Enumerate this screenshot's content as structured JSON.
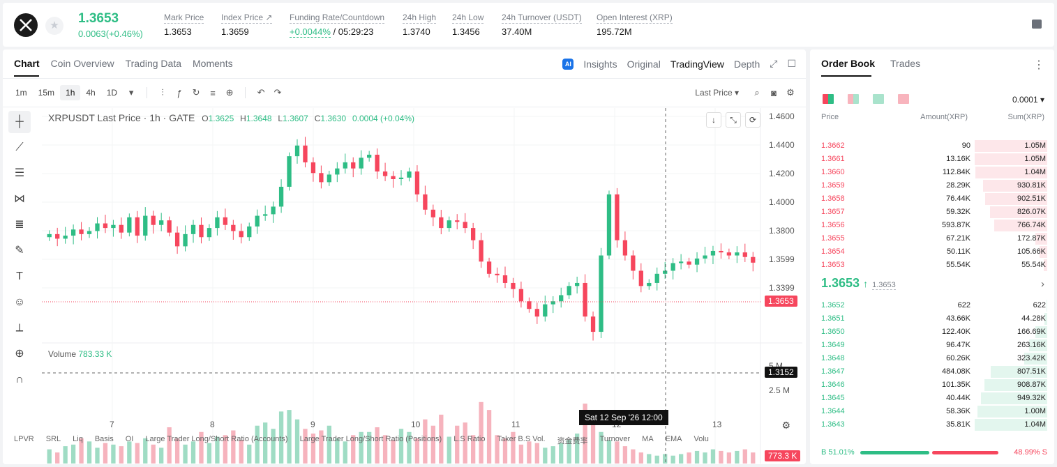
{
  "colors": {
    "up": "#2ebd85",
    "down": "#f6465d"
  },
  "ticker": {
    "price": "1.3653",
    "change": "0.0063(+0.46%)",
    "stats": [
      {
        "key": "Mark Price",
        "value": "1.3653"
      },
      {
        "key": "Index Price ↗",
        "value": "1.3659"
      },
      {
        "key": "Funding Rate/Countdown",
        "value_green": "+0.0044%",
        "value": " / 05:29:23"
      },
      {
        "key": "24h High",
        "value": "1.3740"
      },
      {
        "key": "24h Low",
        "value": "1.3456"
      },
      {
        "key": "24h Turnover (USDT)",
        "value": "37.40M"
      },
      {
        "key": "Open Interest (XRP)",
        "value": "195.72M"
      }
    ]
  },
  "chart_tabs": [
    "Chart",
    "Coin Overview",
    "Trading Data",
    "Moments"
  ],
  "views": {
    "insights": "Insights",
    "original": "Original",
    "tradingview": "TradingView",
    "depth": "Depth"
  },
  "intervals": [
    "1m",
    "15m",
    "1h",
    "4h",
    "1D"
  ],
  "last_price_select": "Last Price ▾",
  "legend": {
    "title": "XRPUSDT Last Price · 1h · GATE",
    "o": "1.3625",
    "h": "1.3648",
    "l": "1.3607",
    "c": "1.3630",
    "chg": "0.0004 (+0.04%)"
  },
  "volume_label": "Volume",
  "volume_value": "783.33 K",
  "price_tag": "1.3653",
  "cross_tag": "1.3152",
  "vol_tag": "773.3 K",
  "crosshair_time": "Sat 12 Sep '26    12:00",
  "indicators": [
    "LPVR",
    "SRL",
    "Liq",
    "Basis",
    "OI",
    "Large Trader Long/Short Ratio (Accounts)",
    "Large Trader Long/Short Ratio (Positions)",
    "L.S Ratio",
    "Taker B.S Vol.",
    "资金费率",
    "Turnover",
    "MA",
    "EMA",
    "Volu"
  ],
  "chart_data": {
    "type": "candlestick",
    "title": "XRPUSDT Last Price · 1h · GATE",
    "y_ticks": [
      "1.4600",
      "1.4400",
      "1.4200",
      "1.4000",
      "1.3800",
      "1.3599",
      "1.3399"
    ],
    "ylim": [
      1.315,
      1.462
    ],
    "x_ticks": [
      "7",
      "8",
      "9",
      "10",
      "11",
      "12",
      "13"
    ],
    "volume_ticks": [
      "5 M",
      "2.5 M"
    ],
    "closes": [
      1.384,
      1.381,
      1.383,
      1.387,
      1.384,
      1.386,
      1.391,
      1.388,
      1.39,
      1.385,
      1.395,
      1.383,
      1.396,
      1.39,
      1.393,
      1.385,
      1.376,
      1.384,
      1.39,
      1.382,
      1.388,
      1.395,
      1.39,
      1.386,
      1.382,
      1.389,
      1.396,
      1.397,
      1.402,
      1.415,
      1.435,
      1.442,
      1.431,
      1.424,
      1.418,
      1.423,
      1.427,
      1.431,
      1.427,
      1.434,
      1.436,
      1.425,
      1.422,
      1.42,
      1.421,
      1.425,
      1.41,
      1.4,
      1.395,
      1.388,
      1.393,
      1.392,
      1.388,
      1.38,
      1.366,
      1.358,
      1.357,
      1.352,
      1.348,
      1.34,
      1.335,
      1.33,
      1.338,
      1.34,
      1.344,
      1.35,
      1.352,
      1.33,
      1.32,
      1.37,
      1.41,
      1.38,
      1.37,
      1.36,
      1.35,
      1.352,
      1.358,
      1.36,
      1.365,
      1.366,
      1.364,
      1.368,
      1.37,
      1.373,
      1.372,
      1.37,
      1.372,
      1.369,
      1.3653
    ],
    "volumes": [
      0.9,
      0.7,
      1.1,
      1.2,
      1.6,
      1.4,
      1.0,
      1.3,
      1.2,
      1.1,
      1.4,
      1.3,
      1.6,
      1.2,
      1.0,
      2.3,
      1.6,
      1.2,
      1.4,
      2.0,
      1.3,
      1.7,
      1.8,
      2.1,
      1.5,
      1.2,
      2.4,
      2.6,
      2.2,
      3.3,
      3.4,
      2.8,
      2.2,
      1.9,
      2.1,
      2.4,
      1.6,
      1.4,
      1.8,
      2.0,
      2.0,
      2.3,
      1.8,
      1.5,
      2.2,
      2.0,
      1.6,
      2.8,
      2.4,
      3.1,
      1.7,
      2.4,
      2.6,
      1.8,
      3.9,
      3.4,
      1.8,
      1.6,
      2.0,
      1.2,
      1.4,
      1.3,
      1.0,
      1.1,
      1.3,
      1.5,
      1.9,
      3.8,
      3.3,
      2.0,
      1.5,
      1.4,
      1.1,
      0.9,
      0.7,
      0.6,
      0.5,
      0.6,
      0.5,
      0.6,
      0.7,
      0.8,
      0.7,
      0.9,
      0.8,
      0.7,
      0.8,
      0.9,
      0.7
    ],
    "vol_ylim": [
      0,
      6.5
    ]
  },
  "orderbook": {
    "tabs": [
      "Order Book",
      "Trades"
    ],
    "precision": "0.0001 ▾",
    "headers": {
      "price": "Price",
      "amount": "Amount(XRP)",
      "sum": "Sum(XRP)"
    },
    "asks": [
      {
        "price": "1.3662",
        "amount": "90",
        "sum": "1.05M",
        "depth": 0.99
      },
      {
        "price": "1.3661",
        "amount": "13.16K",
        "sum": "1.05M",
        "depth": 0.99
      },
      {
        "price": "1.3660",
        "amount": "112.84K",
        "sum": "1.04M",
        "depth": 0.98
      },
      {
        "price": "1.3659",
        "amount": "28.29K",
        "sum": "930.81K",
        "depth": 0.88
      },
      {
        "price": "1.3658",
        "amount": "76.44K",
        "sum": "902.51K",
        "depth": 0.85
      },
      {
        "price": "1.3657",
        "amount": "59.32K",
        "sum": "826.07K",
        "depth": 0.78
      },
      {
        "price": "1.3656",
        "amount": "593.87K",
        "sum": "766.74K",
        "depth": 0.72
      },
      {
        "price": "1.3655",
        "amount": "67.21K",
        "sum": "172.87K",
        "depth": 0.16
      },
      {
        "price": "1.3654",
        "amount": "50.11K",
        "sum": "105.66K",
        "depth": 0.1
      },
      {
        "price": "1.3653",
        "amount": "55.54K",
        "sum": "55.54K",
        "depth": 0.05
      }
    ],
    "mid_price": "1.3653",
    "mid_arrow": "↑",
    "mark_price": "1.3653",
    "bids": [
      {
        "price": "1.3652",
        "amount": "622",
        "sum": "622",
        "depth": 0.01
      },
      {
        "price": "1.3651",
        "amount": "43.66K",
        "sum": "44.28K",
        "depth": 0.04
      },
      {
        "price": "1.3650",
        "amount": "122.40K",
        "sum": "166.69K",
        "depth": 0.16
      },
      {
        "price": "1.3649",
        "amount": "96.47K",
        "sum": "263.16K",
        "depth": 0.25
      },
      {
        "price": "1.3648",
        "amount": "60.26K",
        "sum": "323.42K",
        "depth": 0.31
      },
      {
        "price": "1.3647",
        "amount": "484.08K",
        "sum": "807.51K",
        "depth": 0.77
      },
      {
        "price": "1.3646",
        "amount": "101.35K",
        "sum": "908.87K",
        "depth": 0.86
      },
      {
        "price": "1.3645",
        "amount": "40.44K",
        "sum": "949.32K",
        "depth": 0.9
      },
      {
        "price": "1.3644",
        "amount": "58.36K",
        "sum": "1.00M",
        "depth": 0.95
      },
      {
        "price": "1.3643",
        "amount": "35.81K",
        "sum": "1.04M",
        "depth": 0.99
      }
    ],
    "buy_ratio": "B 51.01%",
    "sell_ratio": "48.99% S",
    "buy_fraction": 0.5101
  }
}
